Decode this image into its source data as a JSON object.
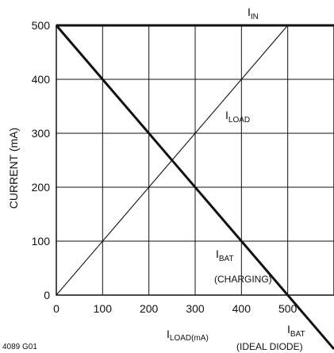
{
  "figure_id": "4089 G01",
  "chart_data": {
    "type": "line",
    "xlabel": {
      "main": "I",
      "sub": "LOAD(mA)"
    },
    "ylabel": "CURRENT (mA)",
    "xlim": [
      0,
      600
    ],
    "ylim": [
      0,
      500
    ],
    "xticks": [
      0,
      100,
      200,
      300,
      400,
      500
    ],
    "yticks": [
      0,
      100,
      200,
      300,
      400,
      500
    ],
    "grid": true,
    "series": [
      {
        "name": "IIN",
        "label_main": "I",
        "label_sub": "IN",
        "weight": "heavy",
        "x": [
          0,
          600
        ],
        "y": [
          500,
          500
        ]
      },
      {
        "name": "ILOAD",
        "label_main": "I",
        "label_sub": "LOAD",
        "weight": "light",
        "x": [
          0,
          500
        ],
        "y": [
          0,
          500
        ]
      },
      {
        "name": "IBAT",
        "label_main": "I",
        "label_sub": "BAT",
        "weight": "heavy",
        "x": [
          0,
          600
        ],
        "y": [
          500,
          -100
        ]
      }
    ],
    "annotations": [
      {
        "series": "IBAT",
        "text": "(CHARGING)"
      },
      {
        "series": "IBAT",
        "text": "(IDEAL DIODE)"
      }
    ]
  }
}
